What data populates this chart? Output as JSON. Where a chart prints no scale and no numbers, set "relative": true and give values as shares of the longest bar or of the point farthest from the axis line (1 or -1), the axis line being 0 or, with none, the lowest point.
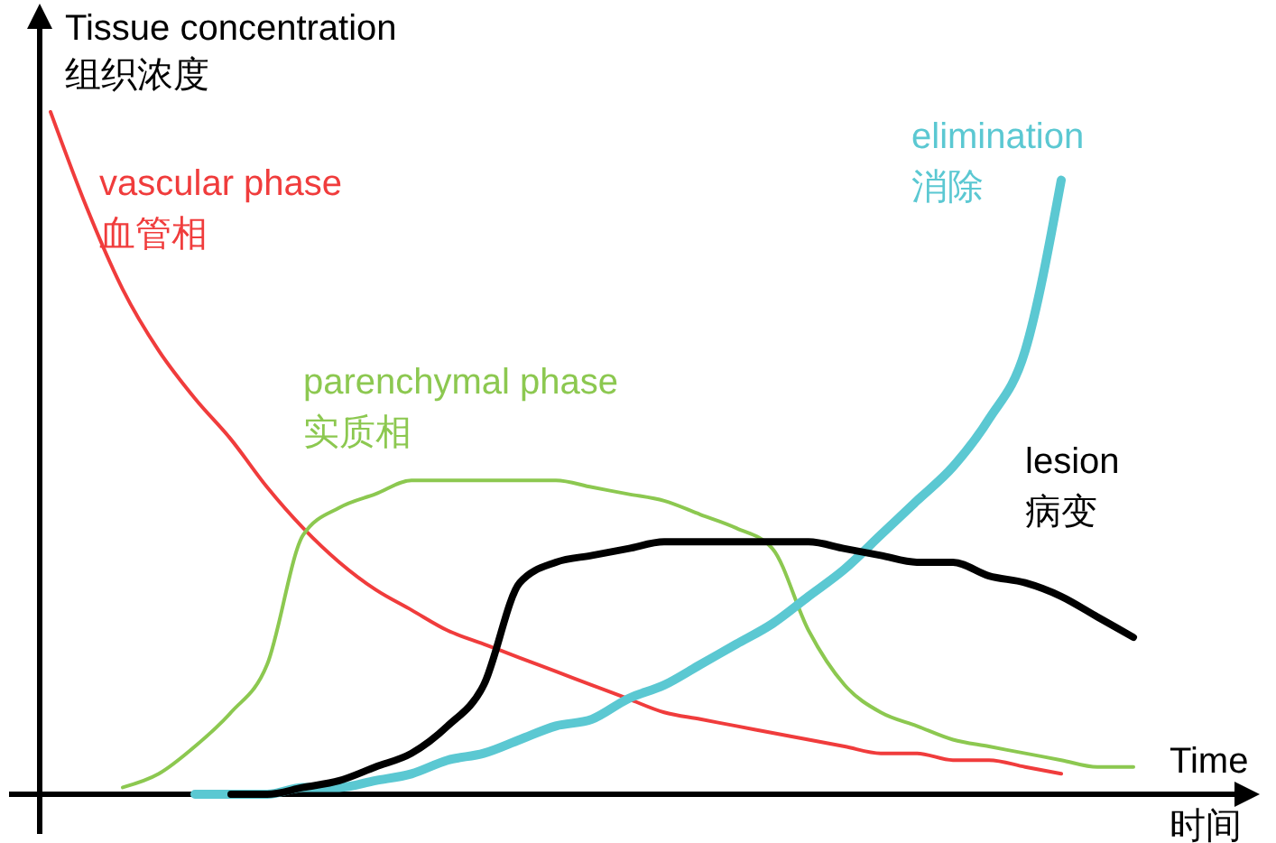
{
  "chart_data": {
    "type": "line",
    "relative": true,
    "xlabel": "Time\n时间",
    "ylabel": "Tissue concentration\n组织浓度",
    "tick_labels": false,
    "grid": false,
    "legend": false,
    "marker": "none",
    "line_style": "solid",
    "categories": [
      null,
      null,
      null,
      null,
      null,
      null,
      null,
      null,
      null,
      null,
      null,
      null,
      null,
      null,
      null,
      null,
      null,
      null,
      null,
      null,
      null,
      null,
      null,
      null,
      null,
      null,
      null,
      null,
      null,
      null,
      null
    ],
    "series": [
      {
        "name": "vascular phase\n血管相",
        "color": "#f03c3c",
        "values": [
          1.0,
          0.86,
          0.74,
          0.65,
          0.58,
          0.52,
          0.45,
          0.39,
          0.34,
          0.3,
          0.27,
          0.24,
          0.22,
          0.2,
          0.18,
          0.16,
          0.14,
          0.12,
          0.11,
          0.1,
          0.09,
          0.08,
          0.07,
          0.06,
          0.06,
          0.05,
          0.05,
          0.04,
          0.03,
          null,
          null
        ]
      },
      {
        "name": "parenchymal phase\n实质相",
        "color": "#8cc850",
        "values": [
          null,
          null,
          0.01,
          0.03,
          0.07,
          0.12,
          0.19,
          0.38,
          0.42,
          0.44,
          0.46,
          0.46,
          0.46,
          0.46,
          0.46,
          0.45,
          0.44,
          0.43,
          0.41,
          0.39,
          0.36,
          0.24,
          0.16,
          0.12,
          0.1,
          0.08,
          0.07,
          0.06,
          0.05,
          0.04,
          0.04
        ]
      },
      {
        "name": "elimination\n消除",
        "color": "#5bc8d2",
        "values": [
          null,
          null,
          null,
          null,
          0,
          0,
          0,
          0.01,
          0.01,
          0.02,
          0.03,
          0.05,
          0.06,
          0.08,
          0.1,
          0.11,
          0.14,
          0.16,
          0.19,
          0.22,
          0.25,
          0.29,
          0.33,
          0.38,
          0.43,
          0.48,
          0.55,
          0.65,
          0.9,
          null,
          null
        ]
      },
      {
        "name": "lesion\n病变",
        "color": "#000000",
        "values": [
          null,
          null,
          null,
          null,
          null,
          0,
          0,
          0.01,
          0.02,
          0.04,
          0.06,
          0.1,
          0.16,
          0.31,
          0.34,
          0.35,
          0.36,
          0.37,
          0.37,
          0.37,
          0.37,
          0.37,
          0.36,
          0.35,
          0.34,
          0.34,
          0.32,
          0.31,
          0.29,
          0.26,
          0.23
        ]
      }
    ]
  }
}
